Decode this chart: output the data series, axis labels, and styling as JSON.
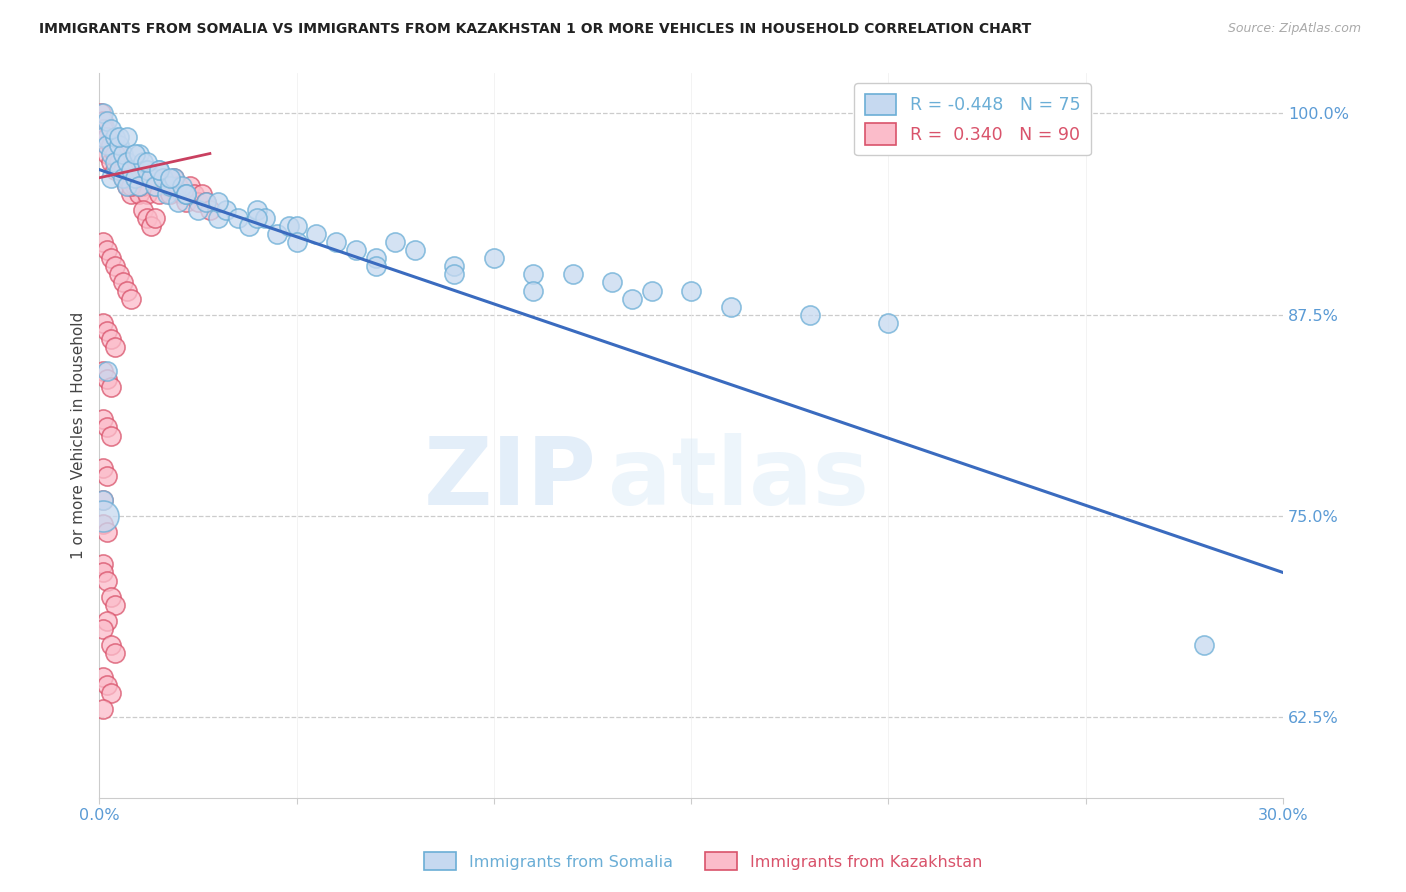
{
  "title": "IMMIGRANTS FROM SOMALIA VS IMMIGRANTS FROM KAZAKHSTAN 1 OR MORE VEHICLES IN HOUSEHOLD CORRELATION CHART",
  "source": "Source: ZipAtlas.com",
  "ylabel": "1 or more Vehicles in Household",
  "somalia_color": "#c6d9f0",
  "somalia_edge": "#6baed6",
  "kazakhstan_color": "#fbbcca",
  "kazakhstan_edge": "#d9536b",
  "trend_somalia_color": "#3a6bbf",
  "trend_kazakhstan_color": "#c94060",
  "xmin": 0.0,
  "xmax": 0.3,
  "ymin": 0.575,
  "ymax": 1.025,
  "watermark_zip": "ZIP",
  "watermark_atlas": "atlas",
  "x_tick_positions": [
    0.0,
    0.05,
    0.1,
    0.15,
    0.2,
    0.25,
    0.3
  ],
  "x_tick_labels": [
    "0.0%",
    "",
    "",
    "",
    "",
    "",
    "30.0%"
  ],
  "y_tick_positions": [
    0.625,
    0.75,
    0.875,
    1.0
  ],
  "y_tick_labels": [
    "62.5%",
    "75.0%",
    "87.5%",
    "100.0%"
  ],
  "legend_somalia_r": "R = -0.448",
  "legend_somalia_n": "N = 75",
  "legend_kazakhstan_r": "R =  0.340",
  "legend_kazakhstan_n": "N = 90",
  "label_somalia": "Immigrants from Somalia",
  "label_kazakhstan": "Immigrants from Kazakhstan",
  "trend_somalia_x0": 0.0,
  "trend_somalia_x1": 0.3,
  "trend_somalia_y0": 0.965,
  "trend_somalia_y1": 0.715,
  "somalia_scatter_x": [
    0.001,
    0.001,
    0.002,
    0.002,
    0.003,
    0.003,
    0.004,
    0.004,
    0.005,
    0.005,
    0.006,
    0.006,
    0.007,
    0.007,
    0.008,
    0.009,
    0.01,
    0.01,
    0.011,
    0.012,
    0.013,
    0.014,
    0.015,
    0.016,
    0.017,
    0.018,
    0.019,
    0.02,
    0.021,
    0.022,
    0.025,
    0.027,
    0.03,
    0.032,
    0.035,
    0.038,
    0.04,
    0.042,
    0.045,
    0.048,
    0.05,
    0.055,
    0.06,
    0.065,
    0.07,
    0.075,
    0.08,
    0.09,
    0.1,
    0.11,
    0.12,
    0.13,
    0.14,
    0.15,
    0.003,
    0.005,
    0.007,
    0.009,
    0.012,
    0.015,
    0.018,
    0.022,
    0.03,
    0.04,
    0.05,
    0.07,
    0.09,
    0.11,
    0.135,
    0.16,
    0.18,
    0.2,
    0.28,
    0.001,
    0.002
  ],
  "somalia_scatter_y": [
    1.0,
    0.985,
    0.995,
    0.98,
    0.975,
    0.96,
    0.985,
    0.97,
    0.98,
    0.965,
    0.975,
    0.96,
    0.97,
    0.955,
    0.965,
    0.96,
    0.975,
    0.955,
    0.97,
    0.965,
    0.96,
    0.955,
    0.965,
    0.96,
    0.95,
    0.955,
    0.96,
    0.945,
    0.955,
    0.95,
    0.94,
    0.945,
    0.935,
    0.94,
    0.935,
    0.93,
    0.94,
    0.935,
    0.925,
    0.93,
    0.93,
    0.925,
    0.92,
    0.915,
    0.91,
    0.92,
    0.915,
    0.905,
    0.91,
    0.9,
    0.9,
    0.895,
    0.89,
    0.89,
    0.99,
    0.985,
    0.985,
    0.975,
    0.97,
    0.965,
    0.96,
    0.95,
    0.945,
    0.935,
    0.92,
    0.905,
    0.9,
    0.89,
    0.885,
    0.88,
    0.875,
    0.87,
    0.67,
    0.76,
    0.84
  ],
  "kazakhstan_scatter_x": [
    0.0005,
    0.001,
    0.001,
    0.0015,
    0.002,
    0.002,
    0.003,
    0.003,
    0.004,
    0.004,
    0.005,
    0.005,
    0.006,
    0.006,
    0.007,
    0.007,
    0.008,
    0.008,
    0.009,
    0.009,
    0.01,
    0.01,
    0.011,
    0.012,
    0.013,
    0.014,
    0.015,
    0.016,
    0.017,
    0.018,
    0.019,
    0.02,
    0.021,
    0.022,
    0.023,
    0.024,
    0.025,
    0.026,
    0.027,
    0.028,
    0.001,
    0.002,
    0.003,
    0.004,
    0.005,
    0.006,
    0.007,
    0.008,
    0.009,
    0.01,
    0.011,
    0.012,
    0.013,
    0.014,
    0.001,
    0.002,
    0.003,
    0.004,
    0.005,
    0.006,
    0.007,
    0.008,
    0.001,
    0.002,
    0.003,
    0.004,
    0.001,
    0.002,
    0.003,
    0.001,
    0.002,
    0.003,
    0.001,
    0.002,
    0.001,
    0.001,
    0.002,
    0.001,
    0.001,
    0.002,
    0.003,
    0.004,
    0.002,
    0.001,
    0.003,
    0.004,
    0.001,
    0.002,
    0.003,
    0.001
  ],
  "kazakhstan_scatter_y": [
    1.0,
    0.995,
    0.985,
    0.99,
    0.985,
    0.975,
    0.98,
    0.97,
    0.975,
    0.965,
    0.975,
    0.965,
    0.97,
    0.96,
    0.965,
    0.955,
    0.96,
    0.95,
    0.965,
    0.955,
    0.96,
    0.95,
    0.955,
    0.95,
    0.96,
    0.955,
    0.95,
    0.96,
    0.955,
    0.95,
    0.96,
    0.955,
    0.95,
    0.945,
    0.955,
    0.95,
    0.945,
    0.95,
    0.945,
    0.94,
    0.99,
    0.985,
    0.98,
    0.975,
    0.97,
    0.965,
    0.96,
    0.955,
    0.96,
    0.955,
    0.94,
    0.935,
    0.93,
    0.935,
    0.92,
    0.915,
    0.91,
    0.905,
    0.9,
    0.895,
    0.89,
    0.885,
    0.87,
    0.865,
    0.86,
    0.855,
    0.84,
    0.835,
    0.83,
    0.81,
    0.805,
    0.8,
    0.78,
    0.775,
    0.76,
    0.745,
    0.74,
    0.72,
    0.715,
    0.71,
    0.7,
    0.695,
    0.685,
    0.68,
    0.67,
    0.665,
    0.65,
    0.645,
    0.64,
    0.63
  ]
}
